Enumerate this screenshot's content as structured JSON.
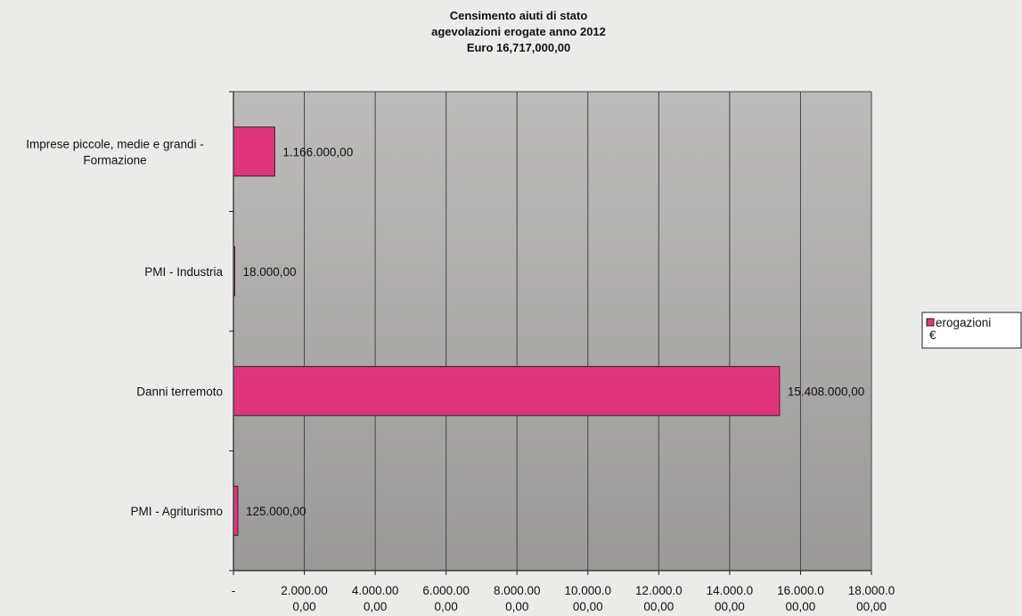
{
  "chart_data": {
    "type": "bar",
    "orientation": "horizontal",
    "title_lines": [
      "Censimento aiuti di stato",
      "agevolazioni erogate  anno 2012",
      "Euro 16,717,000,00"
    ],
    "categories": [
      [
        "Imprese piccole, medie e grandi -",
        "Formazione"
      ],
      [
        "PMI - Industria"
      ],
      [
        "Danni terremoto"
      ],
      [
        "PMI - Agriturismo"
      ]
    ],
    "values": [
      1166000,
      18000,
      15408000,
      125000
    ],
    "data_labels": [
      "1.166.000,00",
      "18.000,00",
      "15.408.000,00",
      "125.000,00"
    ],
    "series": [
      {
        "name": "erogazioni €",
        "legend_lines": [
          "erogazioni",
          "€"
        ],
        "color": "#e0357a"
      }
    ],
    "xlim": [
      0,
      18000000
    ],
    "x_ticks": [
      {
        "value": 0,
        "lines": [
          "-"
        ]
      },
      {
        "value": 2000000,
        "lines": [
          "2.000.00",
          "0,00"
        ]
      },
      {
        "value": 4000000,
        "lines": [
          "4.000.00",
          "0,00"
        ]
      },
      {
        "value": 6000000,
        "lines": [
          "6.000.00",
          "0,00"
        ]
      },
      {
        "value": 8000000,
        "lines": [
          "8.000.00",
          "0,00"
        ]
      },
      {
        "value": 10000000,
        "lines": [
          "10.000.0",
          "00,00"
        ]
      },
      {
        "value": 12000000,
        "lines": [
          "12.000.0",
          "00,00"
        ]
      },
      {
        "value": 14000000,
        "lines": [
          "14.000.0",
          "00,00"
        ]
      },
      {
        "value": 16000000,
        "lines": [
          "16.000.0",
          "00,00"
        ]
      },
      {
        "value": 18000000,
        "lines": [
          "18.000.0",
          "00,00"
        ]
      }
    ],
    "grid": true,
    "legend_position": "right",
    "colors": {
      "bar": "#e0357a",
      "bar_border": "#2a2a2a",
      "plot_bg_top": "#bdbcbb",
      "plot_bg_bottom": "#9a9998",
      "grid": "#444444"
    }
  }
}
